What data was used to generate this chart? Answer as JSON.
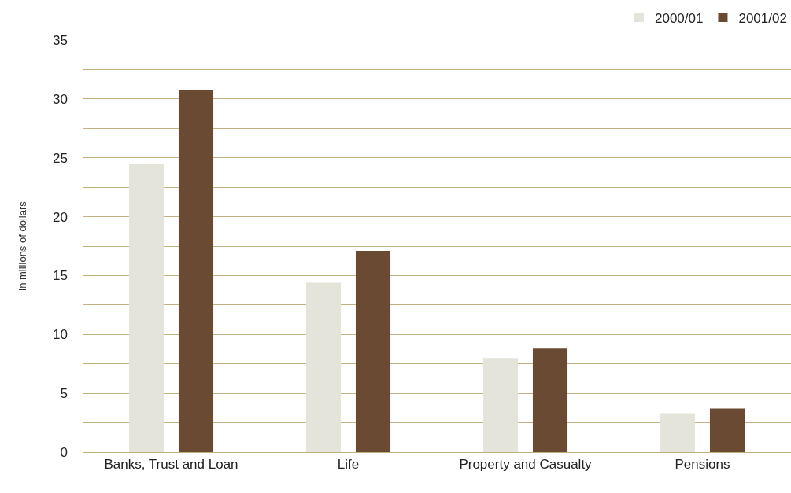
{
  "chart_data": {
    "type": "bar",
    "ylabel": "in millions of dollars",
    "categories": [
      "Banks, Trust and Loan",
      "Life",
      "Property and Casualty",
      "Pensions"
    ],
    "series": [
      {
        "name": "2000/01",
        "color": "#e5e4da",
        "values": [
          24.5,
          14.4,
          8.0,
          3.3
        ]
      },
      {
        "name": "2001/02",
        "color": "#6b4a33",
        "values": [
          30.8,
          17.1,
          8.8,
          3.7
        ]
      }
    ],
    "ylim": [
      0,
      35
    ],
    "yticks": [
      0,
      {
        "value": 2.5,
        "label": null
      },
      5,
      {
        "value": 7.5,
        "label": null
      },
      10,
      {
        "value": 12.5,
        "label": null
      },
      15,
      {
        "value": 17.5,
        "label": null
      },
      20,
      {
        "value": 22.5,
        "label": null
      },
      25,
      {
        "value": 27.5,
        "label": null
      },
      30,
      {
        "value": 32.5,
        "label": null
      },
      35
    ],
    "grid": "y",
    "legend": "top right"
  }
}
